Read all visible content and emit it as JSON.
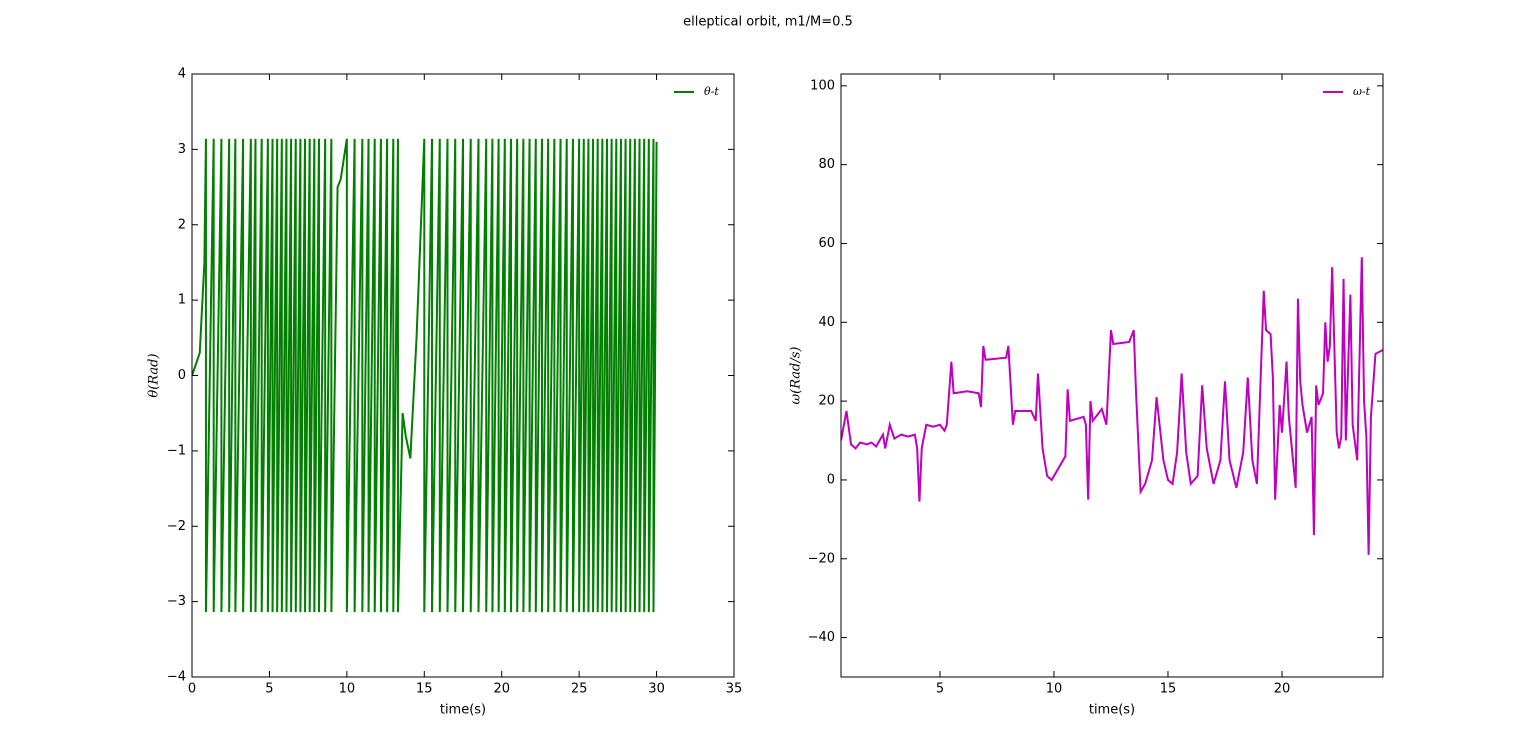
{
  "title": "elleptical orbit, m1/M=0.5",
  "chart_data": [
    {
      "type": "line",
      "xlabel": "time(s)",
      "ylabel": "θ(Rad)",
      "legend": "upper right",
      "xlim": [
        0,
        35
      ],
      "ylim": [
        -4,
        4
      ],
      "xticks": [
        0,
        5,
        10,
        15,
        20,
        25,
        30,
        35
      ],
      "yticks": [
        {
          "value": -4,
          "label": "−4"
        },
        {
          "value": -3,
          "label": "−3"
        },
        {
          "value": -2,
          "label": "−2"
        },
        {
          "value": -1,
          "label": "−1"
        },
        0,
        1,
        2,
        3,
        4
      ],
      "x": [
        0,
        0.5,
        0.8,
        0.9,
        0.9,
        1.4,
        1.4,
        1.9,
        1.9,
        2.4,
        2.4,
        2.8,
        2.8,
        3.3,
        3.3,
        3.8,
        3.8,
        4.1,
        4.1,
        4.5,
        4.5,
        4.9,
        4.9,
        5.2,
        5.2,
        5.5,
        5.5,
        5.8,
        5.8,
        6.1,
        6.1,
        6.4,
        6.4,
        6.7,
        6.7,
        7.0,
        7.0,
        7.3,
        7.3,
        7.6,
        7.6,
        7.9,
        7.9,
        8.2,
        8.2,
        8.6,
        8.6,
        9.0,
        9.0,
        9.4,
        9.6,
        10.0,
        10.0,
        10.5,
        10.5,
        11.0,
        11.0,
        11.4,
        11.4,
        11.8,
        11.8,
        12.2,
        12.2,
        12.6,
        12.6,
        13.0,
        13.0,
        13.3,
        13.3,
        13.6,
        13.8,
        14.1,
        14.5,
        15.0,
        15.0,
        15.5,
        15.5,
        16.0,
        16.0,
        16.5,
        16.5,
        17.0,
        17.0,
        17.5,
        17.5,
        18.0,
        18.0,
        18.5,
        18.5,
        19.0,
        19.0,
        19.4,
        19.4,
        19.8,
        19.8,
        20.2,
        20.2,
        20.6,
        20.6,
        21.0,
        21.0,
        21.4,
        21.4,
        21.8,
        21.8,
        22.2,
        22.2,
        22.6,
        22.6,
        23.0,
        23.0,
        23.4,
        23.4,
        23.8,
        23.8,
        24.2,
        24.2,
        24.6,
        24.6,
        25.0,
        25.0,
        25.3,
        25.3,
        25.6,
        25.6,
        25.9,
        25.9,
        26.2,
        26.2,
        26.5,
        26.5,
        26.8,
        26.8,
        27.1,
        27.1,
        27.4,
        27.4,
        27.7,
        27.7,
        28.0,
        28.0,
        28.3,
        28.3,
        28.6,
        28.6,
        28.9,
        28.9,
        29.2,
        29.2,
        29.5,
        29.5,
        29.8,
        29.8,
        30.0
      ],
      "series": [
        {
          "name": "θ-t",
          "color": "#007f00",
          "values": [
            0,
            0.3,
            1.5,
            3.14,
            -3.14,
            3.14,
            -3.14,
            3.14,
            -3.14,
            3.14,
            -3.14,
            3.14,
            -3.14,
            3.14,
            -3.14,
            3.14,
            -3.14,
            3.14,
            -3.14,
            3.14,
            -3.14,
            3.14,
            -3.14,
            3.14,
            -3.14,
            3.14,
            -3.14,
            3.14,
            -3.14,
            3.14,
            -3.14,
            3.14,
            -3.14,
            3.14,
            -3.14,
            3.14,
            -3.14,
            3.14,
            -3.14,
            3.14,
            -3.14,
            3.14,
            -3.14,
            3.14,
            -3.14,
            3.14,
            -3.14,
            3.14,
            -3.14,
            2.5,
            2.6,
            3.14,
            -3.14,
            3.14,
            -3.14,
            3.14,
            -3.14,
            3.14,
            -3.14,
            3.14,
            -3.14,
            3.14,
            -3.14,
            3.14,
            -3.14,
            3.14,
            -3.14,
            3.14,
            -3.14,
            -0.5,
            -0.8,
            -1.1,
            0.5,
            3.14,
            -3.14,
            3.14,
            -3.14,
            3.14,
            -3.14,
            3.14,
            -3.14,
            3.14,
            -3.14,
            3.14,
            -3.14,
            3.14,
            -3.14,
            3.14,
            -3.14,
            3.14,
            -3.14,
            3.14,
            -3.14,
            3.14,
            -3.14,
            3.14,
            -3.14,
            3.14,
            -3.14,
            3.14,
            -3.14,
            3.14,
            -3.14,
            3.14,
            -3.14,
            3.14,
            -3.14,
            3.14,
            -3.14,
            3.14,
            -3.14,
            3.14,
            -3.14,
            3.14,
            -3.14,
            3.14,
            -3.14,
            3.14,
            -3.14,
            3.14,
            -3.14,
            3.14,
            -3.14,
            3.14,
            -3.14,
            3.14,
            -3.14,
            3.14,
            -3.14,
            3.14,
            -3.14,
            3.14,
            -3.14,
            3.14,
            -3.14,
            3.14,
            -3.14,
            3.14,
            -3.14,
            3.14,
            -3.14,
            3.14,
            -3.14,
            3.14,
            -3.14,
            3.14,
            -3.14,
            3.14,
            -3.14,
            3.14,
            -3.14,
            3.14,
            -3.14,
            3.1
          ]
        }
      ]
    },
    {
      "type": "line",
      "xlabel": "time(s)",
      "ylabel": "ω(Rad/s)",
      "legend": "upper right",
      "xlim": [
        0.66,
        24.43
      ],
      "ylim": [
        -50,
        103
      ],
      "xticks": [
        5,
        10,
        15,
        20
      ],
      "yticks": [
        {
          "value": -40,
          "label": "−40"
        },
        {
          "value": -20,
          "label": "−20"
        },
        0,
        20,
        40,
        60,
        80,
        100
      ],
      "x": [
        0.66,
        0.9,
        1.1,
        1.3,
        1.5,
        1.8,
        2.0,
        2.2,
        2.5,
        2.6,
        2.8,
        3.0,
        3.3,
        3.6,
        3.9,
        4.0,
        4.1,
        4.2,
        4.4,
        4.7,
        5.0,
        5.2,
        5.3,
        5.4,
        5.5,
        5.6,
        6.2,
        6.7,
        6.8,
        6.9,
        7.0,
        7.9,
        8.0,
        8.1,
        8.2,
        8.3,
        9.0,
        9.2,
        9.3,
        9.5,
        9.7,
        9.9,
        10.2,
        10.5,
        10.6,
        10.7,
        11.3,
        11.4,
        11.5,
        11.6,
        11.7,
        12.1,
        12.3,
        12.5,
        12.6,
        13.3,
        13.5,
        13.6,
        13.8,
        14.0,
        14.3,
        14.5,
        14.8,
        15.0,
        15.2,
        15.4,
        15.6,
        15.8,
        16.0,
        16.3,
        16.5,
        16.7,
        17.0,
        17.3,
        17.5,
        17.7,
        18.0,
        18.3,
        18.5,
        18.7,
        18.9,
        19.2,
        19.3,
        19.5,
        19.6,
        19.7,
        19.9,
        20.0,
        20.2,
        20.3,
        20.6,
        20.7,
        20.8,
        20.9,
        21.1,
        21.3,
        21.4,
        21.5,
        21.6,
        21.8,
        21.9,
        22.0,
        22.1,
        22.2,
        22.4,
        22.5,
        22.6,
        22.7,
        22.8,
        23.0,
        23.1,
        23.3,
        23.5,
        23.6,
        23.7,
        23.8,
        23.9,
        24.1,
        24.43
      ],
      "series": [
        {
          "name": "ω-t",
          "color": "#bf00bf",
          "values": [
            10,
            17.5,
            9,
            8,
            9.5,
            9,
            9.5,
            8.5,
            11.5,
            8,
            14,
            10.5,
            11.5,
            11,
            11.5,
            8,
            -5.5,
            8,
            14,
            13.5,
            14,
            12.5,
            14,
            22,
            30,
            22,
            22.5,
            22,
            18.5,
            34,
            30.5,
            31,
            34,
            24,
            14,
            17.5,
            17.5,
            15,
            27,
            8,
            1,
            0,
            3,
            6,
            23,
            15,
            16,
            14,
            -5,
            20,
            15,
            18,
            14,
            38,
            34.5,
            35,
            38,
            22,
            -3,
            -1,
            5,
            21,
            5,
            0,
            -1,
            7,
            27,
            7,
            -1,
            1,
            24,
            8,
            -1,
            5,
            25,
            5,
            -2,
            7,
            26,
            5,
            -1,
            48,
            38,
            37,
            26,
            -5,
            19,
            12,
            30,
            16,
            -2,
            46,
            25,
            19,
            12,
            16,
            -14,
            24,
            19,
            22,
            40,
            30,
            34,
            54,
            12,
            8,
            11,
            51,
            10,
            47,
            14,
            5,
            56.5,
            20,
            11,
            -19,
            16,
            32,
            33
          ]
        }
      ]
    }
  ]
}
